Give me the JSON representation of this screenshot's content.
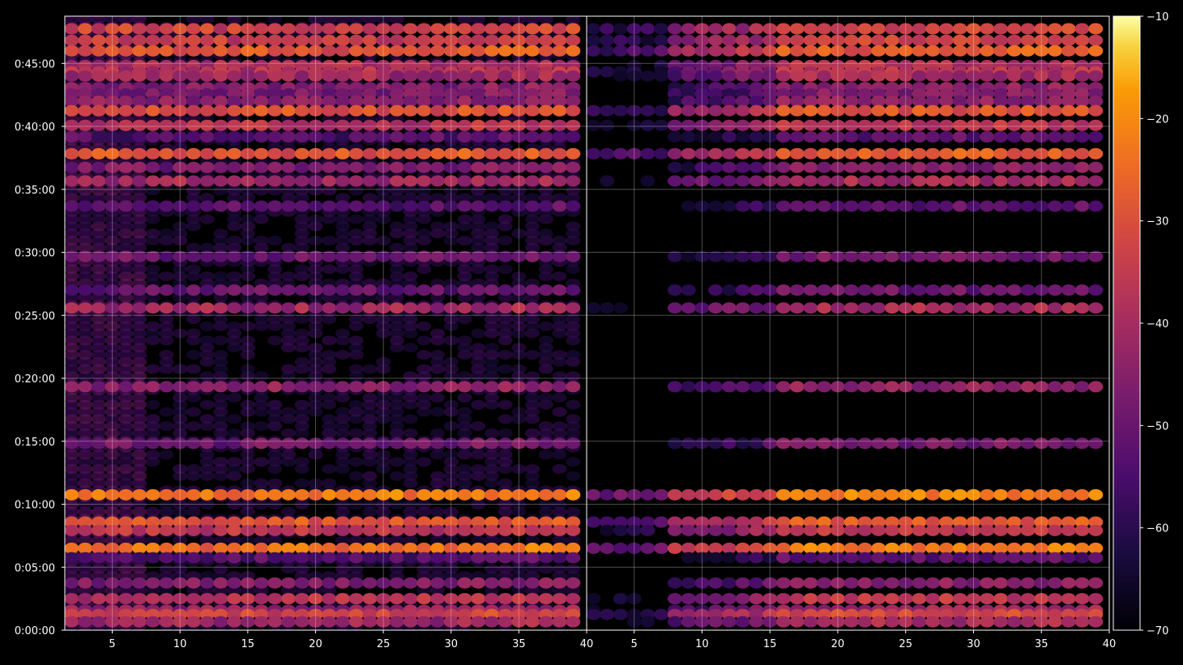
{
  "chart_data": {
    "type": "heatmap",
    "title": "",
    "xlabel": "",
    "ylabel": "",
    "colormap": "inferno",
    "grid": true,
    "panels": [
      {
        "name": "left",
        "xlim": [
          1.5,
          40
        ],
        "x_ticks": [
          "5",
          "10",
          "15",
          "20",
          "25",
          "30",
          "35",
          "40"
        ],
        "x_tick_values": [
          5,
          10,
          15,
          20,
          25,
          30,
          35,
          40
        ]
      },
      {
        "name": "right",
        "xlim": [
          1.5,
          40
        ],
        "x_ticks": [
          "5",
          "10",
          "15",
          "20",
          "25",
          "30",
          "35",
          "40"
        ],
        "x_tick_values": [
          5,
          10,
          15,
          20,
          25,
          30,
          35,
          40
        ]
      }
    ],
    "y_ticks": [
      "0:00:00",
      "0:05:00",
      "0:10:00",
      "0:15:00",
      "0:20:00",
      "0:25:00",
      "0:30:00",
      "0:35:00",
      "0:40:00",
      "0:45:00"
    ],
    "y_tick_seconds": [
      0,
      300,
      600,
      900,
      1200,
      1500,
      1800,
      2100,
      2400,
      2700
    ],
    "ylim_seconds": [
      0,
      2925
    ],
    "colorbar": {
      "range": [
        -70,
        -10
      ],
      "ticks": [
        "−10",
        "−20",
        "−30",
        "−40",
        "−50",
        "−60",
        "−70"
      ],
      "tick_values": [
        -10,
        -20,
        -30,
        -40,
        -50,
        -60,
        -70
      ]
    },
    "bands": [
      {
        "t": 2865,
        "level": -32
      },
      {
        "t": 2810,
        "level": -33
      },
      {
        "t": 2760,
        "level": -28
      },
      {
        "t": 2690,
        "level": -38
      },
      {
        "t": 2660,
        "level": -37
      },
      {
        "t": 2640,
        "level": -40
      },
      {
        "t": 2585,
        "level": -44
      },
      {
        "t": 2555,
        "level": -46
      },
      {
        "t": 2520,
        "level": -44
      },
      {
        "t": 2475,
        "level": -30
      },
      {
        "t": 2405,
        "level": -36
      },
      {
        "t": 2350,
        "level": -52
      },
      {
        "t": 2270,
        "level": -27
      },
      {
        "t": 2205,
        "level": -46
      },
      {
        "t": 2140,
        "level": -40
      },
      {
        "t": 2020,
        "level": -52
      },
      {
        "t": 1780,
        "level": -48
      },
      {
        "t": 1620,
        "level": -50
      },
      {
        "t": 1535,
        "level": -40
      },
      {
        "t": 1160,
        "level": -44
      },
      {
        "t": 890,
        "level": -48
      },
      {
        "t": 645,
        "level": -22
      },
      {
        "t": 515,
        "level": -28
      },
      {
        "t": 475,
        "level": -35
      },
      {
        "t": 390,
        "level": -23
      },
      {
        "t": 345,
        "level": -52
      },
      {
        "t": 225,
        "level": -45
      },
      {
        "t": 150,
        "level": -36
      },
      {
        "t": 95,
        "level": -42
      },
      {
        "t": 75,
        "level": -32
      },
      {
        "t": 40,
        "level": -40
      }
    ]
  }
}
